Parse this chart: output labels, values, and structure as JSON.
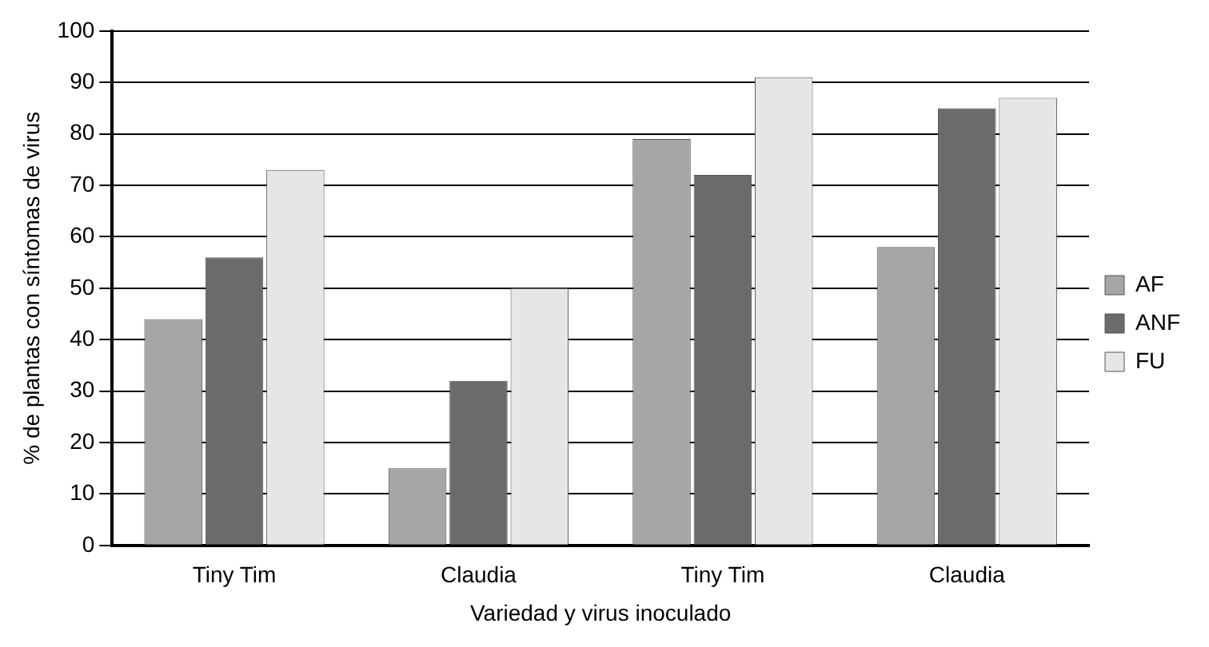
{
  "chart_data": {
    "type": "bar",
    "xlabel": "Variedad y virus inoculado",
    "ylabel": "% de plantas con síntomas de virus",
    "categories": [
      "Tiny Tim",
      "Claudia",
      "Tiny Tim",
      "Claudia"
    ],
    "series": [
      {
        "name": "AF",
        "color": "#a6a6a6",
        "values": [
          44,
          15,
          79,
          58
        ]
      },
      {
        "name": "ANF",
        "color": "#6b6b6b",
        "values": [
          56,
          32,
          72,
          85
        ]
      },
      {
        "name": "FU",
        "color": "#e6e6e6",
        "values": [
          73,
          50,
          91,
          87
        ]
      }
    ],
    "ylim": [
      0,
      100
    ],
    "yticks": [
      0,
      10,
      20,
      30,
      40,
      50,
      60,
      70,
      80,
      90,
      100
    ],
    "grid": "y",
    "legend": "right"
  }
}
